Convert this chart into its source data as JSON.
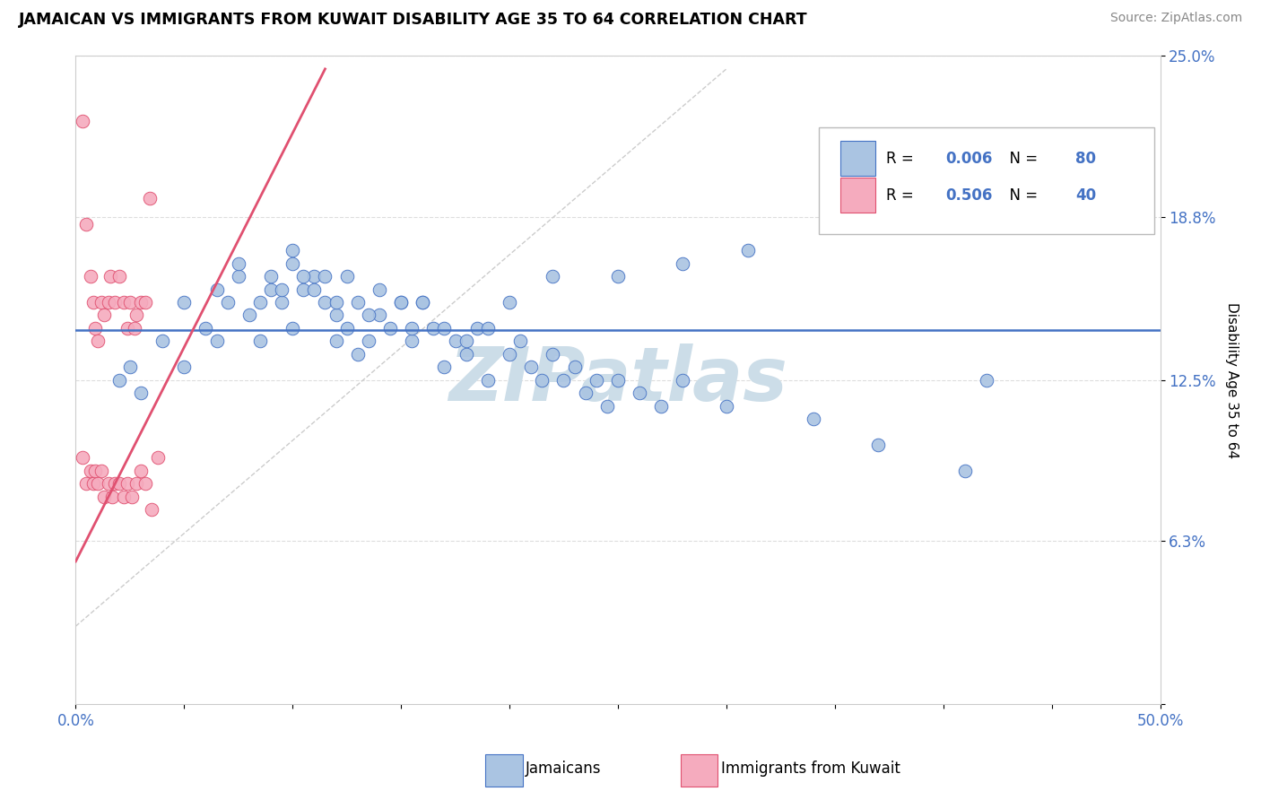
{
  "title": "JAMAICAN VS IMMIGRANTS FROM KUWAIT DISABILITY AGE 35 TO 64 CORRELATION CHART",
  "source": "Source: ZipAtlas.com",
  "ylabel": "Disability Age 35 to 64",
  "xmin": 0.0,
  "xmax": 0.5,
  "ymin": 0.0,
  "ymax": 0.25,
  "yticks": [
    0.0,
    0.063,
    0.125,
    0.188,
    0.25
  ],
  "ytick_labels": [
    "",
    "6.3%",
    "12.5%",
    "18.8%",
    "25.0%"
  ],
  "blue_r": "0.006",
  "blue_n": "80",
  "pink_r": "0.506",
  "pink_n": "40",
  "blue_color": "#aac4e2",
  "pink_color": "#f5abbe",
  "blue_line_color": "#4472c4",
  "pink_line_color": "#e05070",
  "watermark": "ZIPatlas",
  "watermark_color": "#ccdde8",
  "legend_label_blue": "Jamaicans",
  "legend_label_pink": "Immigrants from Kuwait",
  "blue_scatter_x": [
    0.02,
    0.025,
    0.03,
    0.04,
    0.05,
    0.05,
    0.06,
    0.065,
    0.07,
    0.075,
    0.08,
    0.085,
    0.09,
    0.095,
    0.1,
    0.1,
    0.105,
    0.11,
    0.115,
    0.12,
    0.12,
    0.125,
    0.13,
    0.135,
    0.14,
    0.145,
    0.15,
    0.155,
    0.16,
    0.165,
    0.17,
    0.175,
    0.18,
    0.185,
    0.19,
    0.2,
    0.205,
    0.21,
    0.215,
    0.22,
    0.225,
    0.23,
    0.235,
    0.24,
    0.245,
    0.25,
    0.26,
    0.27,
    0.28,
    0.3,
    0.065,
    0.075,
    0.085,
    0.09,
    0.095,
    0.1,
    0.105,
    0.11,
    0.115,
    0.12,
    0.125,
    0.13,
    0.135,
    0.14,
    0.15,
    0.155,
    0.16,
    0.17,
    0.18,
    0.19,
    0.2,
    0.22,
    0.25,
    0.28,
    0.31,
    0.34,
    0.37,
    0.41,
    0.44,
    0.42
  ],
  "blue_scatter_y": [
    0.125,
    0.13,
    0.12,
    0.14,
    0.155,
    0.13,
    0.145,
    0.14,
    0.155,
    0.165,
    0.15,
    0.14,
    0.16,
    0.155,
    0.17,
    0.145,
    0.16,
    0.165,
    0.155,
    0.15,
    0.14,
    0.145,
    0.135,
    0.14,
    0.15,
    0.145,
    0.155,
    0.14,
    0.155,
    0.145,
    0.13,
    0.14,
    0.135,
    0.145,
    0.125,
    0.135,
    0.14,
    0.13,
    0.125,
    0.135,
    0.125,
    0.13,
    0.12,
    0.125,
    0.115,
    0.125,
    0.12,
    0.115,
    0.125,
    0.115,
    0.16,
    0.17,
    0.155,
    0.165,
    0.16,
    0.175,
    0.165,
    0.16,
    0.165,
    0.155,
    0.165,
    0.155,
    0.15,
    0.16,
    0.155,
    0.145,
    0.155,
    0.145,
    0.14,
    0.145,
    0.155,
    0.165,
    0.165,
    0.17,
    0.175,
    0.11,
    0.1,
    0.09,
    0.19,
    0.125
  ],
  "pink_scatter_x": [
    0.003,
    0.005,
    0.007,
    0.008,
    0.009,
    0.01,
    0.012,
    0.013,
    0.015,
    0.016,
    0.018,
    0.02,
    0.022,
    0.024,
    0.025,
    0.027,
    0.028,
    0.03,
    0.032,
    0.034,
    0.003,
    0.005,
    0.007,
    0.008,
    0.009,
    0.01,
    0.012,
    0.013,
    0.015,
    0.017,
    0.018,
    0.02,
    0.022,
    0.024,
    0.026,
    0.028,
    0.03,
    0.032,
    0.035,
    0.038
  ],
  "pink_scatter_y": [
    0.225,
    0.185,
    0.165,
    0.155,
    0.145,
    0.14,
    0.155,
    0.15,
    0.155,
    0.165,
    0.155,
    0.165,
    0.155,
    0.145,
    0.155,
    0.145,
    0.15,
    0.155,
    0.155,
    0.195,
    0.095,
    0.085,
    0.09,
    0.085,
    0.09,
    0.085,
    0.09,
    0.08,
    0.085,
    0.08,
    0.085,
    0.085,
    0.08,
    0.085,
    0.08,
    0.085,
    0.09,
    0.085,
    0.075,
    0.095
  ],
  "pink_trend_x0": 0.0,
  "pink_trend_x1": 0.115,
  "pink_trend_y0": 0.055,
  "pink_trend_y1": 0.245,
  "grey_line_x0": 0.0,
  "grey_line_x1": 0.3,
  "grey_line_y0": 0.03,
  "grey_line_y1": 0.245
}
